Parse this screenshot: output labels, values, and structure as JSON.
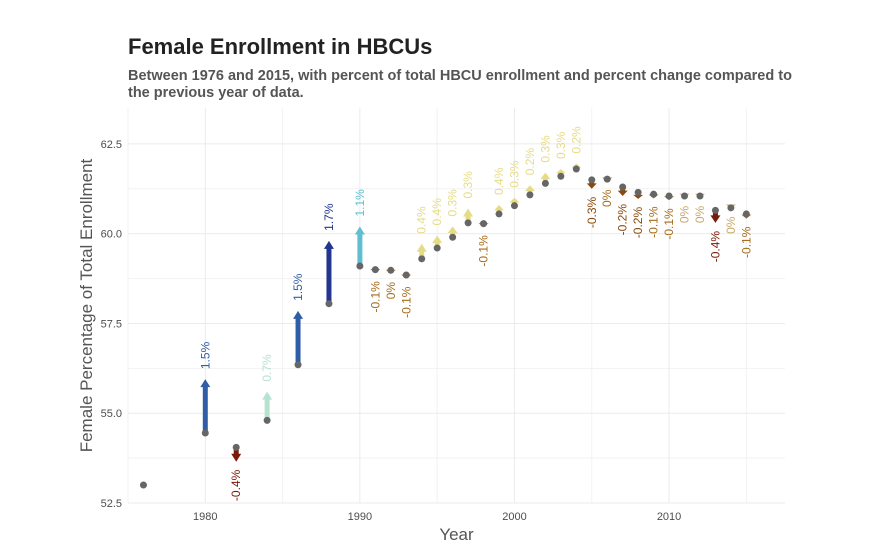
{
  "chart_data": {
    "type": "scatter",
    "title": "Female Enrollment in HBCUs",
    "subtitle": "Between 1976 and 2015, with percent of total HBCU enrollment and percent change compared to the previous year of data.",
    "xlabel": "Year",
    "ylabel": "Female Percentage of Total Enrollment",
    "xlim": [
      1975,
      2017.5
    ],
    "ylim": [
      52.5,
      63.5
    ],
    "x_ticks": [
      1980,
      1990,
      2000,
      2010
    ],
    "y_ticks": [
      "52.5",
      "55.0",
      "57.5",
      "60.0",
      "62.5"
    ],
    "grid": true,
    "legend": "none",
    "points": [
      {
        "year": 1976,
        "prev": null,
        "value": 53.0,
        "label": ""
      },
      {
        "year": 1980,
        "prev": 54.45,
        "value": 55.95,
        "label": "1.5%"
      },
      {
        "year": 1982,
        "prev": 54.05,
        "value": 53.65,
        "label": "-0.4%"
      },
      {
        "year": 1984,
        "prev": 54.8,
        "value": 55.6,
        "label": "0.7%"
      },
      {
        "year": 1986,
        "prev": 56.35,
        "value": 57.85,
        "label": "1.5%"
      },
      {
        "year": 1988,
        "prev": 58.05,
        "value": 59.8,
        "label": "1.7%"
      },
      {
        "year": 1990,
        "prev": 59.1,
        "value": 60.2,
        "label": "1.1%"
      },
      {
        "year": 1991,
        "prev": 59.0,
        "value": 58.9,
        "label": "-0.1%"
      },
      {
        "year": 1992,
        "prev": 58.98,
        "value": 58.88,
        "label": "0%"
      },
      {
        "year": 1993,
        "prev": 58.85,
        "value": 58.75,
        "label": "-0.1%"
      },
      {
        "year": 1994,
        "prev": 59.3,
        "value": 59.72,
        "label": "0.4%"
      },
      {
        "year": 1995,
        "prev": 59.6,
        "value": 59.95,
        "label": "0.4%"
      },
      {
        "year": 1996,
        "prev": 59.9,
        "value": 60.2,
        "label": "0.3%"
      },
      {
        "year": 1997,
        "prev": 60.3,
        "value": 60.7,
        "label": "0.3%"
      },
      {
        "year": 1998,
        "prev": 60.28,
        "value": 60.18,
        "label": "-0.1%"
      },
      {
        "year": 1999,
        "prev": 60.55,
        "value": 60.8,
        "label": "0.4%"
      },
      {
        "year": 2000,
        "prev": 60.78,
        "value": 61.0,
        "label": "0.3%"
      },
      {
        "year": 2001,
        "prev": 61.08,
        "value": 61.35,
        "label": "0.2%"
      },
      {
        "year": 2002,
        "prev": 61.4,
        "value": 61.7,
        "label": "0.3%"
      },
      {
        "year": 2003,
        "prev": 61.6,
        "value": 61.8,
        "label": "0.3%"
      },
      {
        "year": 2004,
        "prev": 61.8,
        "value": 61.95,
        "label": "0.2%"
      },
      {
        "year": 2005,
        "prev": 61.5,
        "value": 61.25,
        "label": "-0.3%"
      },
      {
        "year": 2006,
        "prev": 61.52,
        "value": 61.45,
        "label": "0%"
      },
      {
        "year": 2007,
        "prev": 61.3,
        "value": 61.05,
        "label": "-0.2%"
      },
      {
        "year": 2008,
        "prev": 61.15,
        "value": 60.97,
        "label": "-0.2%"
      },
      {
        "year": 2009,
        "prev": 61.1,
        "value": 60.98,
        "label": "-0.1%"
      },
      {
        "year": 2010,
        "prev": 61.05,
        "value": 60.93,
        "label": "-0.1%"
      },
      {
        "year": 2011,
        "prev": 61.05,
        "value": 61.0,
        "label": "0%"
      },
      {
        "year": 2012,
        "prev": 61.05,
        "value": 61.0,
        "label": "0%"
      },
      {
        "year": 2013,
        "prev": 60.65,
        "value": 60.3,
        "label": "-0.4%"
      },
      {
        "year": 2014,
        "prev": 60.72,
        "value": 60.7,
        "label": "0%"
      },
      {
        "year": 2015,
        "prev": 60.55,
        "value": 60.42,
        "label": "-0.1%"
      }
    ],
    "colors": {
      "point": "#666666",
      "grid": "#ebebeb",
      "tick_text": "#4d4d4d",
      "axis_title": "#555555",
      "change_scale": [
        {
          "min": 1.65,
          "color": "#22368f"
        },
        {
          "min": 1.3,
          "color": "#2f5ea6"
        },
        {
          "min": 0.9,
          "color": "#5fbfd0"
        },
        {
          "min": 0.55,
          "color": "#b6e3cf"
        },
        {
          "min": 0.15,
          "color": "#e6dc86"
        },
        {
          "min": -0.05,
          "color": "#c8a96b"
        },
        {
          "min": -0.15,
          "color": "#a66d1c"
        },
        {
          "min": -0.25,
          "color": "#8a4a0e"
        },
        {
          "min": -9,
          "color": "#7a1a08"
        }
      ]
    }
  }
}
